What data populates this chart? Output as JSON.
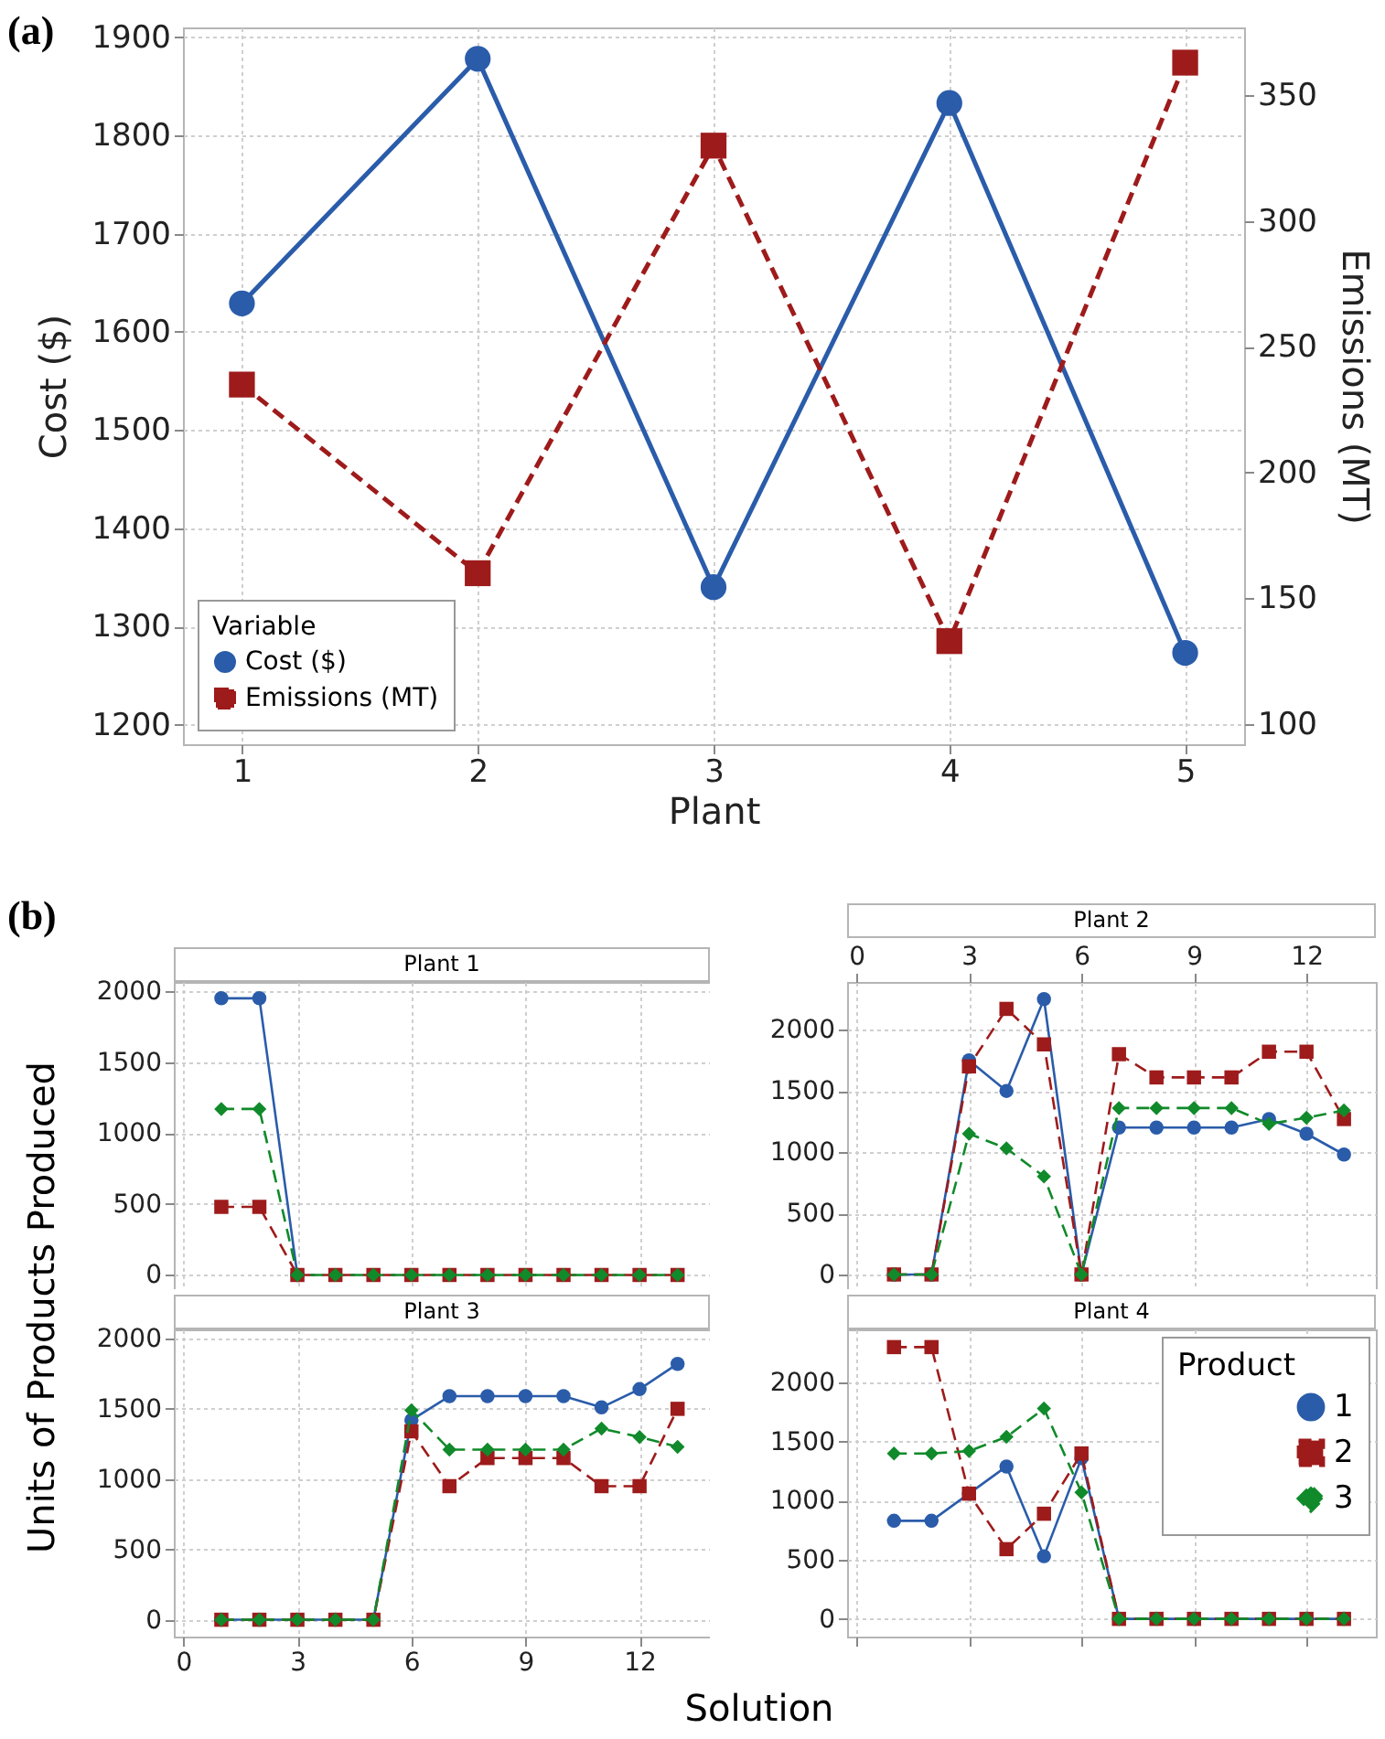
{
  "chart_data": [
    {
      "type": "line",
      "annotations": [
        "(a)"
      ],
      "xlabel": "Plant",
      "ylabel": "Cost ($)",
      "y2label": "Emissions (MT)",
      "legend_title": "Variable",
      "legend": "bottom left",
      "grid": true,
      "x": [
        1,
        2,
        3,
        4,
        5
      ],
      "xlim": [
        0.75,
        5.25
      ],
      "xticks": [
        1,
        2,
        3,
        4,
        5
      ],
      "ylim": [
        1180,
        1910
      ],
      "yticks": [
        1200,
        1300,
        1400,
        1500,
        1600,
        1700,
        1800,
        1900
      ],
      "y2lim": [
        92,
        377
      ],
      "y2ticks": [
        100,
        150,
        200,
        250,
        300,
        350
      ],
      "series": [
        {
          "name": "Cost ($)",
          "color": "#2a5caa",
          "marker": "circle",
          "line_style": "solid",
          "values": [
            1629,
            1878,
            1340,
            1833,
            1273
          ]
        },
        {
          "name": "Emissions (MT)",
          "color": "#9e1b1b",
          "marker": "square",
          "line_style": "dashed",
          "axis": "y2",
          "values": [
            235,
            160,
            330,
            133,
            363
          ]
        }
      ]
    },
    {
      "type": "line",
      "title": "Plant 1",
      "annotations": [
        "(b)"
      ],
      "ylabel": "Units of Products Produced",
      "grid": true,
      "tick_labels": "y",
      "x": [
        1,
        2,
        3,
        4,
        5,
        6,
        7,
        8,
        9,
        10,
        11,
        12,
        13
      ],
      "xlim": [
        -0.25,
        13.85
      ],
      "xticks": [
        0,
        3,
        6,
        9,
        12
      ],
      "ylim": [
        -100,
        2065
      ],
      "yticks": [
        0,
        500,
        1000,
        1500,
        2000
      ],
      "series": [
        {
          "color": "#2a5caa",
          "marker": "circle",
          "line_style": "solid",
          "values": [
            1950,
            1950,
            0,
            null,
            null,
            null,
            null,
            null,
            null,
            null,
            null,
            null,
            null
          ]
        },
        {
          "color": "#9e1b1b",
          "marker": "square",
          "line_style": "dashed",
          "values": [
            480,
            480,
            0,
            0,
            0,
            0,
            0,
            0,
            0,
            0,
            0,
            0,
            0
          ]
        },
        {
          "color": "#108a2a",
          "marker": "diamond",
          "line_style": "dashed",
          "values": [
            1170,
            1170,
            0,
            0,
            0,
            0,
            0,
            0,
            0,
            0,
            0,
            0,
            0
          ]
        }
      ]
    },
    {
      "type": "line",
      "title": "Plant 2",
      "grid": true,
      "tick_labels": "y",
      "x": [
        1,
        2,
        3,
        4,
        5,
        6,
        7,
        8,
        9,
        10,
        11,
        12,
        13
      ],
      "xlim": [
        -0.25,
        13.85
      ],
      "xticks": [
        0,
        3,
        6,
        9,
        12
      ],
      "x2lim": [
        -0.25,
        13.85
      ],
      "x2ticks": [
        0,
        3,
        6,
        9,
        12
      ],
      "ylim": [
        -120,
        2390
      ],
      "yticks": [
        0,
        500,
        1000,
        1500,
        2000
      ],
      "series": [
        {
          "color": "#2a5caa",
          "marker": "circle",
          "line_style": "solid",
          "values": [
            0,
            0,
            1750,
            1500,
            2250,
            0,
            1200,
            1200,
            1200,
            1200,
            1270,
            1150,
            980
          ]
        },
        {
          "color": "#9e1b1b",
          "marker": "square",
          "line_style": "dashed",
          "values": [
            0,
            0,
            1700,
            2170,
            1880,
            0,
            1800,
            1610,
            1610,
            1610,
            1820,
            1820,
            1270
          ]
        },
        {
          "color": "#108a2a",
          "marker": "diamond",
          "line_style": "dashed",
          "values": [
            0,
            0,
            1150,
            1030,
            800,
            0,
            1360,
            1360,
            1360,
            1360,
            1230,
            1280,
            1340
          ]
        }
      ]
    },
    {
      "type": "line",
      "title": "Plant 3",
      "xlabel": "Solution",
      "grid": true,
      "x": [
        1,
        2,
        3,
        4,
        5,
        6,
        7,
        8,
        9,
        10,
        11,
        12,
        13
      ],
      "xlim": [
        -0.25,
        13.85
      ],
      "xticks": [
        0,
        3,
        6,
        9,
        12
      ],
      "ylim": [
        -120,
        2065
      ],
      "yticks": [
        0,
        500,
        1000,
        1500,
        2000
      ],
      "series": [
        {
          "color": "#2a5caa",
          "marker": "circle",
          "line_style": "solid",
          "values": [
            0,
            0,
            0,
            0,
            0,
            1420,
            1590,
            1590,
            1590,
            1590,
            1510,
            1640,
            1820
          ]
        },
        {
          "color": "#9e1b1b",
          "marker": "square",
          "line_style": "dashed",
          "values": [
            0,
            0,
            0,
            0,
            0,
            1340,
            950,
            1150,
            1150,
            1150,
            950,
            950,
            1500
          ]
        },
        {
          "color": "#108a2a",
          "marker": "diamond",
          "line_style": "dashed",
          "values": [
            0,
            0,
            0,
            0,
            0,
            1490,
            1210,
            1210,
            1210,
            1210,
            1360,
            1300,
            1230
          ]
        }
      ]
    },
    {
      "type": "line",
      "title": "Plant 4",
      "legend_title": "Product",
      "legend": "top right",
      "grid": true,
      "tick_labels": "y",
      "x": [
        1,
        2,
        3,
        4,
        5,
        6,
        7,
        8,
        9,
        10,
        11,
        12,
        13
      ],
      "xlim": [
        -0.25,
        13.85
      ],
      "xticks": [
        0,
        3,
        6,
        9,
        12
      ],
      "ylim": [
        -150,
        2450
      ],
      "yticks": [
        0,
        500,
        1000,
        1500,
        2000
      ],
      "series": [
        {
          "name": "1",
          "color": "#2a5caa",
          "marker": "circle",
          "line_style": "solid",
          "values": [
            830,
            830,
            1060,
            1290,
            530,
            1360,
            0,
            0,
            0,
            0,
            0,
            0,
            0
          ]
        },
        {
          "name": "2",
          "color": "#9e1b1b",
          "marker": "square",
          "line_style": "dashed",
          "values": [
            2300,
            2300,
            1060,
            590,
            890,
            1400,
            0,
            0,
            0,
            0,
            0,
            0,
            0
          ]
        },
        {
          "name": "3",
          "color": "#108a2a",
          "marker": "diamond",
          "line_style": "dashed",
          "values": [
            1400,
            1400,
            1420,
            1540,
            1780,
            1070,
            0,
            0,
            0,
            0,
            0,
            0,
            0
          ]
        }
      ]
    }
  ]
}
